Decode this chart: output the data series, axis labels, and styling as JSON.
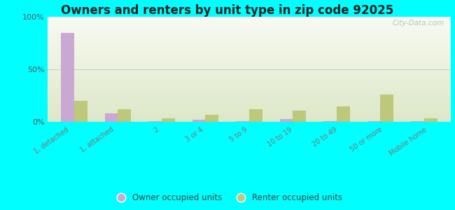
{
  "categories": [
    "1, detached",
    "1, attached",
    "2",
    "3 or 4",
    "5 to 9",
    "10 to 19",
    "20 to 49",
    "50 or more",
    "Mobile home"
  ],
  "owner_values": [
    85,
    8,
    0.8,
    2.0,
    0.8,
    3.0,
    0.4,
    0.4,
    0.4
  ],
  "renter_values": [
    20,
    12,
    3.5,
    6.5,
    12,
    11,
    15,
    26,
    3.5
  ],
  "owner_color": "#c9a8d4",
  "renter_color": "#bec87a",
  "title": "Owners and renters by unit type in zip code 92025",
  "title_fontsize": 12,
  "ytick_values": [
    0,
    50,
    100
  ],
  "ytick_labels": [
    "0%",
    "50%",
    "100%"
  ],
  "ylim": [
    0,
    100
  ],
  "background_outer": "#00ffff",
  "legend_owner": "Owner occupied units",
  "legend_renter": "Renter occupied units",
  "bar_width": 0.3,
  "watermark": "City-Data.com",
  "chart_bg_top": "#f8faf2",
  "chart_bg_bottom": "#dde8c8"
}
